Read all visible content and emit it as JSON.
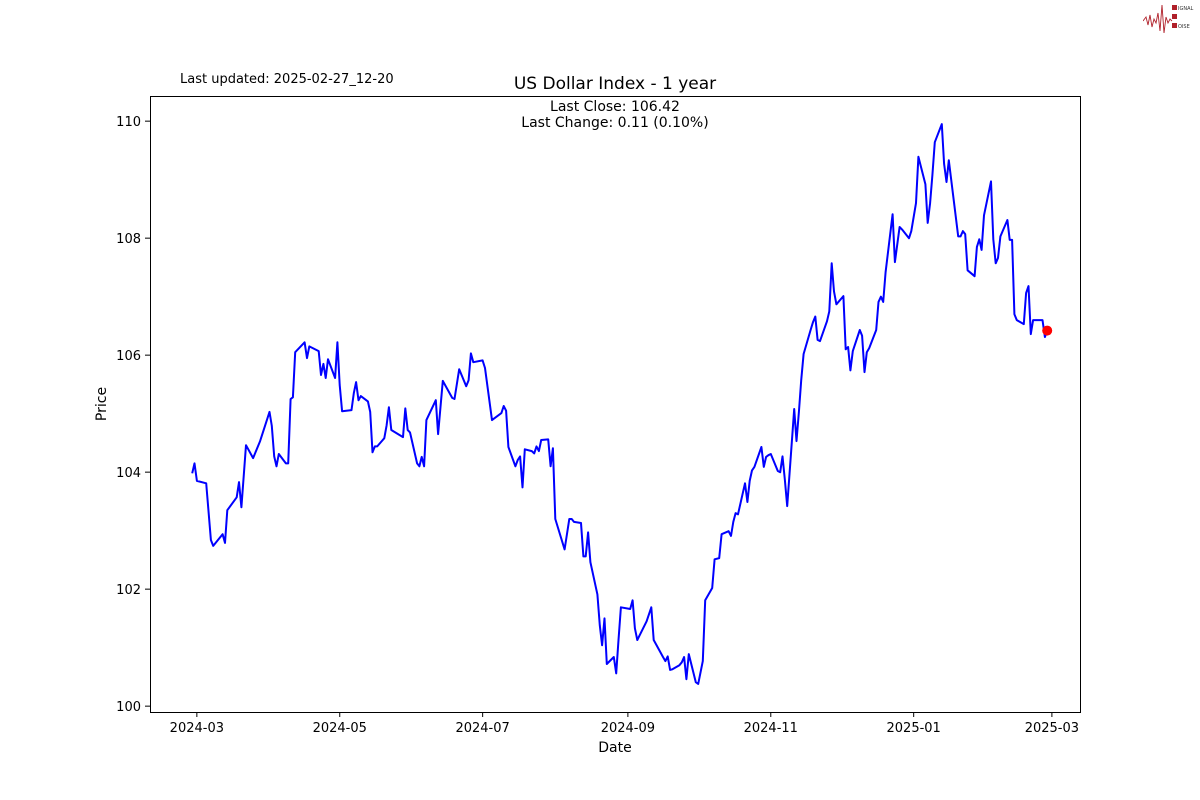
{
  "header": {
    "last_updated": "Last updated: 2025-02-27_12-20",
    "logo_text": [
      "SIGNAL",
      "2",
      "NOISE"
    ]
  },
  "colors": {
    "line": "#0000ff",
    "last_point": "#ff0000",
    "logo": "#b0202a"
  },
  "chart_data": {
    "type": "line",
    "title": "US Dollar Index - 1 year",
    "xlabel": "Date",
    "ylabel": "Price",
    "annotations": [
      "Last Close: 106.42",
      "Last Change: 0.11 (0.10%)"
    ],
    "xlim": [
      "2024-02-10",
      "2025-03-13"
    ],
    "ylim": [
      99.9,
      110.43
    ],
    "x_ticks": [
      "2024-03",
      "2024-05",
      "2024-07",
      "2024-09",
      "2024-11",
      "2025-01",
      "2025-03"
    ],
    "y_ticks": [
      100,
      102,
      104,
      106,
      108,
      110
    ],
    "grid": false,
    "last_point": [
      "2025-02-27",
      106.42
    ],
    "points": [
      [
        "2024-02-28",
        103.98
      ],
      [
        "2024-02-29",
        104.15
      ],
      [
        "2024-03-01",
        103.85
      ],
      [
        "2024-03-05",
        103.81
      ],
      [
        "2024-03-07",
        102.84
      ],
      [
        "2024-03-08",
        102.74
      ],
      [
        "2024-03-12",
        102.94
      ],
      [
        "2024-03-13",
        102.79
      ],
      [
        "2024-03-14",
        103.35
      ],
      [
        "2024-03-18",
        103.57
      ],
      [
        "2024-03-19",
        103.83
      ],
      [
        "2024-03-20",
        103.4
      ],
      [
        "2024-03-22",
        104.46
      ],
      [
        "2024-03-25",
        104.24
      ],
      [
        "2024-03-28",
        104.53
      ],
      [
        "2024-04-01",
        105.03
      ],
      [
        "2024-04-02",
        104.79
      ],
      [
        "2024-04-03",
        104.27
      ],
      [
        "2024-04-04",
        104.1
      ],
      [
        "2024-04-05",
        104.31
      ],
      [
        "2024-04-08",
        104.15
      ],
      [
        "2024-04-09",
        104.15
      ],
      [
        "2024-04-10",
        105.25
      ],
      [
        "2024-04-11",
        105.28
      ],
      [
        "2024-04-12",
        106.05
      ],
      [
        "2024-04-16",
        106.22
      ],
      [
        "2024-04-17",
        105.95
      ],
      [
        "2024-04-18",
        106.15
      ],
      [
        "2024-04-22",
        106.07
      ],
      [
        "2024-04-23",
        105.66
      ],
      [
        "2024-04-24",
        105.85
      ],
      [
        "2024-04-25",
        105.61
      ],
      [
        "2024-04-26",
        105.93
      ],
      [
        "2024-04-29",
        105.61
      ],
      [
        "2024-04-30",
        106.22
      ],
      [
        "2024-05-01",
        105.49
      ],
      [
        "2024-05-02",
        105.04
      ],
      [
        "2024-05-06",
        105.06
      ],
      [
        "2024-05-07",
        105.35
      ],
      [
        "2024-05-08",
        105.54
      ],
      [
        "2024-05-09",
        105.23
      ],
      [
        "2024-05-10",
        105.3
      ],
      [
        "2024-05-13",
        105.21
      ],
      [
        "2024-05-14",
        105.03
      ],
      [
        "2024-05-15",
        104.34
      ],
      [
        "2024-05-16",
        104.44
      ],
      [
        "2024-05-17",
        104.44
      ],
      [
        "2024-05-20",
        104.58
      ],
      [
        "2024-05-21",
        104.8
      ],
      [
        "2024-05-22",
        105.11
      ],
      [
        "2024-05-23",
        104.72
      ],
      [
        "2024-05-28",
        104.6
      ],
      [
        "2024-05-29",
        105.09
      ],
      [
        "2024-05-30",
        104.72
      ],
      [
        "2024-05-31",
        104.68
      ],
      [
        "2024-06-03",
        104.15
      ],
      [
        "2024-06-04",
        104.1
      ],
      [
        "2024-06-05",
        104.26
      ],
      [
        "2024-06-06",
        104.1
      ],
      [
        "2024-06-07",
        104.89
      ],
      [
        "2024-06-11",
        105.23
      ],
      [
        "2024-06-12",
        104.65
      ],
      [
        "2024-06-14",
        105.56
      ],
      [
        "2024-06-18",
        105.27
      ],
      [
        "2024-06-19",
        105.25
      ],
      [
        "2024-06-21",
        105.76
      ],
      [
        "2024-06-24",
        105.47
      ],
      [
        "2024-06-25",
        105.57
      ],
      [
        "2024-06-26",
        106.03
      ],
      [
        "2024-06-27",
        105.88
      ],
      [
        "2024-07-01",
        105.91
      ],
      [
        "2024-07-02",
        105.78
      ],
      [
        "2024-07-05",
        104.89
      ],
      [
        "2024-07-09",
        105.01
      ],
      [
        "2024-07-10",
        105.13
      ],
      [
        "2024-07-11",
        105.05
      ],
      [
        "2024-07-12",
        104.43
      ],
      [
        "2024-07-15",
        104.1
      ],
      [
        "2024-07-16",
        104.21
      ],
      [
        "2024-07-17",
        104.27
      ],
      [
        "2024-07-18",
        103.74
      ],
      [
        "2024-07-19",
        104.39
      ],
      [
        "2024-07-22",
        104.36
      ],
      [
        "2024-07-23",
        104.32
      ],
      [
        "2024-07-24",
        104.44
      ],
      [
        "2024-07-25",
        104.36
      ],
      [
        "2024-07-26",
        104.55
      ],
      [
        "2024-07-29",
        104.56
      ],
      [
        "2024-07-30",
        104.1
      ],
      [
        "2024-07-31",
        104.41
      ],
      [
        "2024-08-01",
        103.2
      ],
      [
        "2024-08-05",
        102.68
      ],
      [
        "2024-08-07",
        103.2
      ],
      [
        "2024-08-08",
        103.2
      ],
      [
        "2024-08-09",
        103.15
      ],
      [
        "2024-08-12",
        103.13
      ],
      [
        "2024-08-13",
        102.56
      ],
      [
        "2024-08-14",
        102.56
      ],
      [
        "2024-08-15",
        102.97
      ],
      [
        "2024-08-16",
        102.46
      ],
      [
        "2024-08-19",
        101.91
      ],
      [
        "2024-08-20",
        101.38
      ],
      [
        "2024-08-21",
        101.04
      ],
      [
        "2024-08-22",
        101.5
      ],
      [
        "2024-08-23",
        100.72
      ],
      [
        "2024-08-26",
        100.84
      ],
      [
        "2024-08-27",
        100.56
      ],
      [
        "2024-08-28",
        101.13
      ],
      [
        "2024-08-29",
        101.69
      ],
      [
        "2024-09-02",
        101.66
      ],
      [
        "2024-09-03",
        101.81
      ],
      [
        "2024-09-04",
        101.33
      ],
      [
        "2024-09-05",
        101.13
      ],
      [
        "2024-09-09",
        101.45
      ],
      [
        "2024-09-11",
        101.69
      ],
      [
        "2024-09-12",
        101.13
      ],
      [
        "2024-09-16",
        100.84
      ],
      [
        "2024-09-17",
        100.77
      ],
      [
        "2024-09-18",
        100.85
      ],
      [
        "2024-09-19",
        100.62
      ],
      [
        "2024-09-20",
        100.63
      ],
      [
        "2024-09-23",
        100.7
      ],
      [
        "2024-09-24",
        100.75
      ],
      [
        "2024-09-25",
        100.84
      ],
      [
        "2024-09-26",
        100.46
      ],
      [
        "2024-09-27",
        100.89
      ],
      [
        "2024-09-30",
        100.41
      ],
      [
        "2024-10-01",
        100.38
      ],
      [
        "2024-10-03",
        100.77
      ],
      [
        "2024-10-04",
        101.81
      ],
      [
        "2024-10-07",
        102.02
      ],
      [
        "2024-10-08",
        102.51
      ],
      [
        "2024-10-10",
        102.53
      ],
      [
        "2024-10-11",
        102.94
      ],
      [
        "2024-10-14",
        102.99
      ],
      [
        "2024-10-15",
        102.91
      ],
      [
        "2024-10-16",
        103.15
      ],
      [
        "2024-10-17",
        103.3
      ],
      [
        "2024-10-18",
        103.28
      ],
      [
        "2024-10-21",
        103.81
      ],
      [
        "2024-10-22",
        103.49
      ],
      [
        "2024-10-23",
        103.85
      ],
      [
        "2024-10-24",
        104.03
      ],
      [
        "2024-10-25",
        104.09
      ],
      [
        "2024-10-28",
        104.43
      ],
      [
        "2024-10-29",
        104.09
      ],
      [
        "2024-10-30",
        104.26
      ],
      [
        "2024-10-31",
        104.29
      ],
      [
        "2024-11-01",
        104.31
      ],
      [
        "2024-11-04",
        104.02
      ],
      [
        "2024-11-05",
        104.0
      ],
      [
        "2024-11-06",
        104.27
      ],
      [
        "2024-11-07",
        103.88
      ],
      [
        "2024-11-08",
        103.42
      ],
      [
        "2024-11-11",
        105.08
      ],
      [
        "2024-11-12",
        104.53
      ],
      [
        "2024-11-13",
        105.03
      ],
      [
        "2024-11-14",
        105.57
      ],
      [
        "2024-11-15",
        106.02
      ],
      [
        "2024-11-18",
        106.43
      ],
      [
        "2024-11-19",
        106.56
      ],
      [
        "2024-11-20",
        106.66
      ],
      [
        "2024-11-21",
        106.26
      ],
      [
        "2024-11-22",
        106.24
      ],
      [
        "2024-11-25",
        106.58
      ],
      [
        "2024-11-26",
        106.75
      ],
      [
        "2024-11-27",
        107.57
      ],
      [
        "2024-11-28",
        107.09
      ],
      [
        "2024-11-29",
        106.87
      ],
      [
        "2024-12-02",
        107.01
      ],
      [
        "2024-12-03",
        106.1
      ],
      [
        "2024-12-04",
        106.14
      ],
      [
        "2024-12-05",
        105.74
      ],
      [
        "2024-12-06",
        106.07
      ],
      [
        "2024-12-09",
        106.43
      ],
      [
        "2024-12-10",
        106.33
      ],
      [
        "2024-12-11",
        105.71
      ],
      [
        "2024-12-12",
        106.05
      ],
      [
        "2024-12-13",
        106.12
      ],
      [
        "2024-12-16",
        106.43
      ],
      [
        "2024-12-17",
        106.91
      ],
      [
        "2024-12-18",
        107.0
      ],
      [
        "2024-12-19",
        106.91
      ],
      [
        "2024-12-20",
        107.42
      ],
      [
        "2024-12-23",
        108.41
      ],
      [
        "2024-12-24",
        107.59
      ],
      [
        "2024-12-26",
        108.19
      ],
      [
        "2024-12-27",
        108.15
      ],
      [
        "2024-12-30",
        108.0
      ],
      [
        "2024-12-31",
        108.12
      ],
      [
        "2025-01-02",
        108.6
      ],
      [
        "2025-01-03",
        109.39
      ],
      [
        "2025-01-06",
        108.92
      ],
      [
        "2025-01-07",
        108.26
      ],
      [
        "2025-01-08",
        108.6
      ],
      [
        "2025-01-09",
        109.08
      ],
      [
        "2025-01-10",
        109.64
      ],
      [
        "2025-01-13",
        109.95
      ],
      [
        "2025-01-14",
        109.27
      ],
      [
        "2025-01-15",
        108.96
      ],
      [
        "2025-01-16",
        109.33
      ],
      [
        "2025-01-20",
        108.03
      ],
      [
        "2025-01-21",
        108.03
      ],
      [
        "2025-01-22",
        108.12
      ],
      [
        "2025-01-23",
        108.07
      ],
      [
        "2025-01-24",
        107.45
      ],
      [
        "2025-01-27",
        107.35
      ],
      [
        "2025-01-28",
        107.85
      ],
      [
        "2025-01-29",
        107.98
      ],
      [
        "2025-01-30",
        107.8
      ],
      [
        "2025-01-31",
        108.39
      ],
      [
        "2025-02-03",
        108.97
      ],
      [
        "2025-02-04",
        107.98
      ],
      [
        "2025-02-05",
        107.57
      ],
      [
        "2025-02-06",
        107.66
      ],
      [
        "2025-02-07",
        108.03
      ],
      [
        "2025-02-10",
        108.31
      ],
      [
        "2025-02-11",
        107.97
      ],
      [
        "2025-02-12",
        107.97
      ],
      [
        "2025-02-13",
        106.7
      ],
      [
        "2025-02-14",
        106.6
      ],
      [
        "2025-02-17",
        106.53
      ],
      [
        "2025-02-18",
        107.06
      ],
      [
        "2025-02-19",
        107.18
      ],
      [
        "2025-02-20",
        106.36
      ],
      [
        "2025-02-21",
        106.6
      ],
      [
        "2025-02-24",
        106.6
      ],
      [
        "2025-02-25",
        106.6
      ],
      [
        "2025-02-26",
        106.31
      ],
      [
        "2025-02-27",
        106.42
      ]
    ]
  }
}
